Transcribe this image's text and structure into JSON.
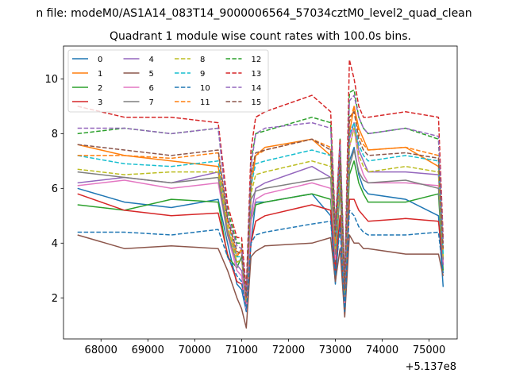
{
  "figure": {
    "suptitle": "n file: modeM0/AS1A14_083T14_9000006564_57034cztM0_level2_quad_clean",
    "title": "Quadrant 1 module wise count rates with 100.0s bins.",
    "x_offset_label": "+5.137e8"
  },
  "chart_data": {
    "type": "line",
    "title": "Quadrant 1 module wise count rates with 100.0s bins.",
    "xlabel": "",
    "ylabel": "",
    "x_offset": 513700000,
    "xlim": [
      67200,
      75600
    ],
    "ylim": [
      0.5,
      11.2
    ],
    "x_ticks": [
      68000,
      69000,
      70000,
      71000,
      72000,
      73000,
      74000,
      75000
    ],
    "x_tick_labels": [
      "68000",
      "69000",
      "70000",
      "71000",
      "72000",
      "73000",
      "74000",
      "75000"
    ],
    "y_ticks": [
      2,
      4,
      6,
      8,
      10
    ],
    "y_tick_labels": [
      "2",
      "4",
      "6",
      "8",
      "10"
    ],
    "grid": false,
    "legend_position": "upper-left",
    "x": [
      67500,
      68500,
      69500,
      70500,
      70700,
      70900,
      71000,
      71100,
      71200,
      71300,
      71500,
      72500,
      72900,
      73000,
      73100,
      73200,
      73300,
      73400,
      73500,
      73600,
      73700,
      74500,
      75200,
      75300
    ],
    "series": [
      {
        "name": "0",
        "color": "#1f77b4",
        "dash": "solid",
        "values": [
          6.0,
          5.5,
          5.3,
          5.6,
          4.0,
          2.5,
          2.3,
          1.5,
          4.0,
          5.5,
          5.5,
          5.8,
          5.0,
          2.5,
          5.0,
          1.5,
          7.0,
          7.5,
          6.5,
          6.0,
          5.8,
          5.6,
          5.0,
          2.4
        ]
      },
      {
        "name": "1",
        "color": "#ff7f0e",
        "dash": "solid",
        "values": [
          7.6,
          7.2,
          7.0,
          6.8,
          4.5,
          3.5,
          3.8,
          1.6,
          6.0,
          7.2,
          7.5,
          7.8,
          7.2,
          3.5,
          6.5,
          1.8,
          8.0,
          9.0,
          8.2,
          7.8,
          7.4,
          7.5,
          6.8,
          3.3
        ]
      },
      {
        "name": "2",
        "color": "#2ca02c",
        "dash": "solid",
        "values": [
          5.4,
          5.2,
          5.6,
          5.5,
          3.5,
          3.1,
          3.5,
          1.8,
          4.8,
          5.4,
          5.5,
          5.8,
          5.6,
          3.2,
          6.0,
          2.0,
          6.5,
          7.0,
          6.2,
          5.8,
          5.5,
          5.5,
          5.8,
          3.0
        ]
      },
      {
        "name": "3",
        "color": "#d62728",
        "dash": "solid",
        "values": [
          5.8,
          5.2,
          5.0,
          5.1,
          3.6,
          2.6,
          2.5,
          1.8,
          4.0,
          4.8,
          5.0,
          5.4,
          5.2,
          3.0,
          5.0,
          1.6,
          5.6,
          5.6,
          5.2,
          5.0,
          4.8,
          4.9,
          4.8,
          3.2
        ]
      },
      {
        "name": "4",
        "color": "#9467bd",
        "dash": "solid",
        "values": [
          6.2,
          6.4,
          6.2,
          6.6,
          4.4,
          3.2,
          3.0,
          1.9,
          5.0,
          6.0,
          6.2,
          6.8,
          6.4,
          3.6,
          6.8,
          2.0,
          7.8,
          8.4,
          7.4,
          7.0,
          6.6,
          6.6,
          6.5,
          3.2
        ]
      },
      {
        "name": "5",
        "color": "#8c564b",
        "dash": "solid",
        "values": [
          4.3,
          3.8,
          3.9,
          3.8,
          3.0,
          2.0,
          1.6,
          0.9,
          3.5,
          3.7,
          3.9,
          4.0,
          4.2,
          2.6,
          3.8,
          1.3,
          4.3,
          4.0,
          4.0,
          3.8,
          3.8,
          3.6,
          3.6,
          2.8
        ]
      },
      {
        "name": "6",
        "color": "#e377c2",
        "dash": "solid",
        "values": [
          6.1,
          6.3,
          6.0,
          6.2,
          4.3,
          3.0,
          2.8,
          1.5,
          4.8,
          5.6,
          5.8,
          6.2,
          6.0,
          3.4,
          6.3,
          1.8,
          7.5,
          8.2,
          7.0,
          6.5,
          6.2,
          6.2,
          6.1,
          3.3
        ]
      },
      {
        "name": "7",
        "color": "#7f7f7f",
        "dash": "solid",
        "values": [
          6.6,
          6.4,
          6.2,
          6.4,
          4.3,
          3.3,
          3.4,
          1.9,
          5.6,
          5.9,
          6.0,
          6.3,
          6.4,
          3.6,
          6.0,
          2.0,
          6.8,
          7.4,
          6.6,
          6.3,
          6.2,
          6.3,
          6.0,
          3.4
        ]
      },
      {
        "name": "8",
        "color": "#bcbd22",
        "dash": "dashed",
        "values": [
          6.7,
          6.5,
          6.6,
          6.6,
          4.6,
          3.3,
          3.4,
          1.9,
          5.8,
          6.5,
          6.6,
          7.0,
          6.8,
          3.8,
          6.4,
          2.2,
          7.5,
          8.2,
          7.2,
          6.8,
          6.6,
          6.8,
          6.6,
          3.5
        ]
      },
      {
        "name": "9",
        "color": "#17becf",
        "dash": "dashed",
        "values": [
          7.2,
          6.9,
          6.8,
          7.0,
          4.8,
          3.5,
          3.5,
          2.1,
          6.1,
          6.9,
          7.0,
          7.4,
          7.2,
          3.9,
          6.9,
          2.3,
          8.0,
          8.4,
          7.6,
          7.2,
          7.0,
          7.2,
          7.0,
          3.6
        ]
      },
      {
        "name": "10",
        "color": "#1f77b4",
        "dash": "dashed",
        "values": [
          4.4,
          4.4,
          4.3,
          4.5,
          3.5,
          2.8,
          2.6,
          1.5,
          4.0,
          4.3,
          4.4,
          4.7,
          4.8,
          2.8,
          4.6,
          1.5,
          5.2,
          5.0,
          4.6,
          4.4,
          4.3,
          4.3,
          4.4,
          2.9
        ]
      },
      {
        "name": "11",
        "color": "#ff7f0e",
        "dash": "dashed",
        "values": [
          7.2,
          7.2,
          7.1,
          7.3,
          4.8,
          3.6,
          3.7,
          2.0,
          6.4,
          7.2,
          7.4,
          7.8,
          7.5,
          4.0,
          7.2,
          2.3,
          8.4,
          9.0,
          8.0,
          7.6,
          7.4,
          7.5,
          7.2,
          3.7
        ]
      },
      {
        "name": "12",
        "color": "#2ca02c",
        "dash": "dashed",
        "values": [
          8.0,
          8.2,
          8.0,
          8.2,
          5.2,
          4.0,
          4.0,
          2.2,
          7.0,
          8.0,
          8.1,
          8.6,
          8.4,
          4.5,
          7.8,
          2.5,
          9.5,
          9.6,
          8.6,
          8.2,
          8.0,
          8.2,
          7.8,
          4.0
        ]
      },
      {
        "name": "13",
        "color": "#d62728",
        "dash": "dashed",
        "values": [
          9.0,
          8.6,
          8.6,
          8.4,
          5.4,
          4.2,
          4.2,
          2.3,
          7.4,
          8.6,
          8.8,
          9.4,
          8.8,
          4.6,
          7.8,
          2.5,
          10.7,
          10.0,
          9.0,
          8.6,
          8.6,
          8.8,
          8.6,
          4.2
        ]
      },
      {
        "name": "14",
        "color": "#9467bd",
        "dash": "dashed",
        "values": [
          8.2,
          8.2,
          8.0,
          8.2,
          5.0,
          3.9,
          3.8,
          2.1,
          6.8,
          8.0,
          8.2,
          8.4,
          8.2,
          4.4,
          7.6,
          2.4,
          9.2,
          9.4,
          8.6,
          8.2,
          8.0,
          8.2,
          7.9,
          4.0
        ]
      },
      {
        "name": "15",
        "color": "#8c564b",
        "dash": "dashed",
        "values": [
          7.6,
          7.4,
          7.2,
          7.4,
          4.9,
          3.7,
          3.6,
          2.0,
          6.5,
          7.3,
          7.4,
          7.8,
          7.4,
          4.2,
          7.0,
          2.3,
          8.6,
          8.8,
          7.8,
          7.4,
          7.2,
          7.3,
          7.1,
          3.8
        ]
      }
    ]
  }
}
